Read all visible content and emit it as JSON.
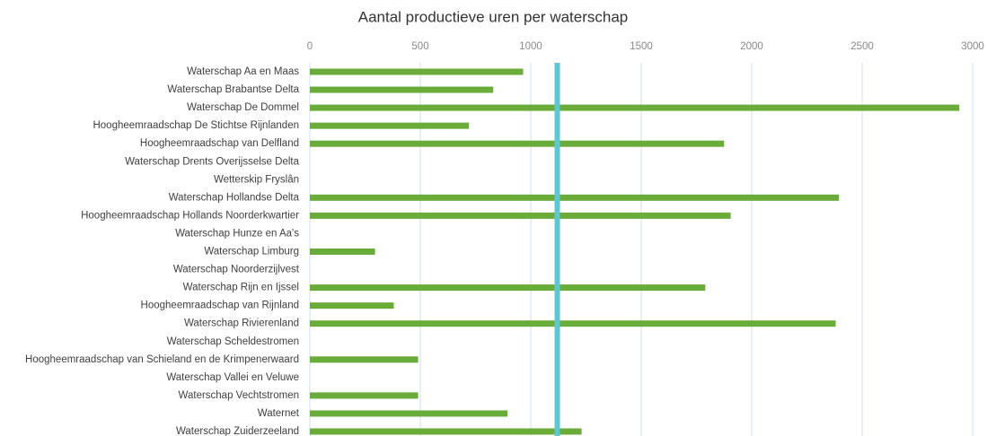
{
  "chart_data": {
    "type": "barh",
    "title": "Aantal productieve uren per waterschap",
    "categories": [
      "Waterschap Aa en Maas",
      "Waterschap Brabantse Delta",
      "Waterschap De Dommel",
      "Hoogheemraadschap De Stichtse Rijnlanden",
      "Hoogheemraadschap van Delfland",
      "Waterschap Drents Overijsselse Delta",
      "Wetterskip Fryslân",
      "Waterschap Hollandse Delta",
      "Hoogheemraadschap Hollands Noorderkwartier",
      "Waterschap Hunze en Aa's",
      "Waterschap Limburg",
      "Waterschap Noorderzijlvest",
      "Waterschap Rijn en Ijssel",
      "Hoogheemraadschap van Rijnland",
      "Waterschap Rivierenland",
      "Waterschap Scheldestromen",
      "Hoogheemraadschap van Schieland en de Krimpenerwaard",
      "Waterschap Vallei en Veluwe",
      "Waterschap Vechtstromen",
      "Waternet",
      "Waterschap Zuiderzeeland"
    ],
    "values": [
      965,
      830,
      2940,
      720,
      1875,
      null,
      null,
      2395,
      1905,
      null,
      295,
      null,
      1790,
      380,
      2380,
      null,
      490,
      null,
      490,
      895,
      1230
    ],
    "color": "#6aac3a",
    "reference_line": 1120,
    "reference_color": "#5bc8d6",
    "xlim": [
      0,
      3000
    ],
    "xticks": [
      0,
      500,
      1000,
      1500,
      2000,
      2500,
      3000
    ],
    "grid": true
  }
}
